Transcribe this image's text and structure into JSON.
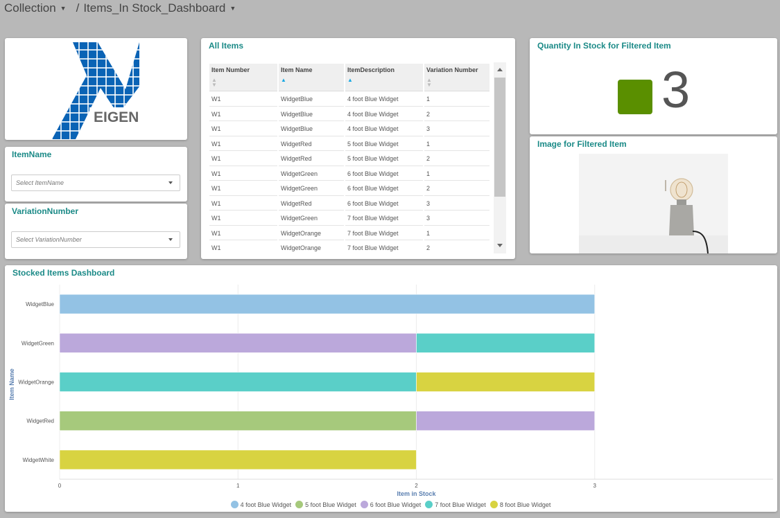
{
  "breadcrumb": {
    "collection": "Collection",
    "separator": "/",
    "dashboard": "Items_In Stock_Dashboard"
  },
  "filters": {
    "item_name": {
      "title": "ItemName",
      "placeholder": "Select ItemName"
    },
    "variation_number": {
      "title": "VariationNumber",
      "placeholder": "Select VariationNumber"
    }
  },
  "logo": {
    "text": "EIGEN",
    "color": "#0a63b5"
  },
  "all_items": {
    "title": "All Items",
    "columns": [
      "Item Number",
      "Item Name",
      "ItemDescription",
      "Variation Number"
    ],
    "rows": [
      [
        "W1",
        "WidgetBlue",
        "4 foot Blue Widget",
        "1"
      ],
      [
        "W1",
        "WidgetBlue",
        "4 foot Blue Widget",
        "2"
      ],
      [
        "W1",
        "WidgetBlue",
        "4 foot Blue Widget",
        "3"
      ],
      [
        "W1",
        "WidgetRed",
        "5 foot Blue Widget",
        "1"
      ],
      [
        "W1",
        "WidgetRed",
        "5 foot Blue Widget",
        "2"
      ],
      [
        "W1",
        "WidgetGreen",
        "6 foot Blue Widget",
        "1"
      ],
      [
        "W1",
        "WidgetGreen",
        "6 foot Blue Widget",
        "2"
      ],
      [
        "W1",
        "WidgetRed",
        "6 foot Blue Widget",
        "3"
      ],
      [
        "W1",
        "WidgetGreen",
        "7 foot Blue Widget",
        "3"
      ],
      [
        "W1",
        "WidgetOrange",
        "7 foot Blue Widget",
        "1"
      ],
      [
        "W1",
        "WidgetOrange",
        "7 foot Blue Widget",
        "2"
      ]
    ]
  },
  "quantity_panel": {
    "title": "Quantity In Stock for Filtered Item",
    "value": "3",
    "color": "#5a8f00"
  },
  "image_panel": {
    "title": "Image for Filtered Item"
  },
  "chart_panel": {
    "title": "Stocked Items Dashboard"
  },
  "chart_data": {
    "type": "bar",
    "orientation": "horizontal",
    "stacked": true,
    "title": "Stocked Items Dashboard",
    "xlabel": "Item in Stock",
    "ylabel": "Item Name",
    "categories": [
      "WidgetBlue",
      "WidgetGreen",
      "WidgetOrange",
      "WidgetRed",
      "WidgetWhite"
    ],
    "xlim": [
      0,
      4
    ],
    "xticks": [
      "0",
      "1",
      "2",
      "3"
    ],
    "series": [
      {
        "name": "4 foot Blue Widget",
        "color": "#93c2e4",
        "values": [
          3,
          0,
          0,
          0,
          0
        ]
      },
      {
        "name": "5 foot Blue Widget",
        "color": "#a6c97c",
        "values": [
          0,
          0,
          0,
          2,
          0
        ]
      },
      {
        "name": "6 foot Blue Widget",
        "color": "#bba8db",
        "values": [
          0,
          2,
          0,
          1,
          0
        ]
      },
      {
        "name": "7 foot Blue Widget",
        "color": "#5acfc8",
        "values": [
          0,
          1,
          2,
          0,
          0
        ]
      },
      {
        "name": "8 foot Blue Widget",
        "color": "#d8d341",
        "values": [
          0,
          0,
          1,
          0,
          2
        ]
      }
    ],
    "legend": "bottom",
    "grid": true
  }
}
